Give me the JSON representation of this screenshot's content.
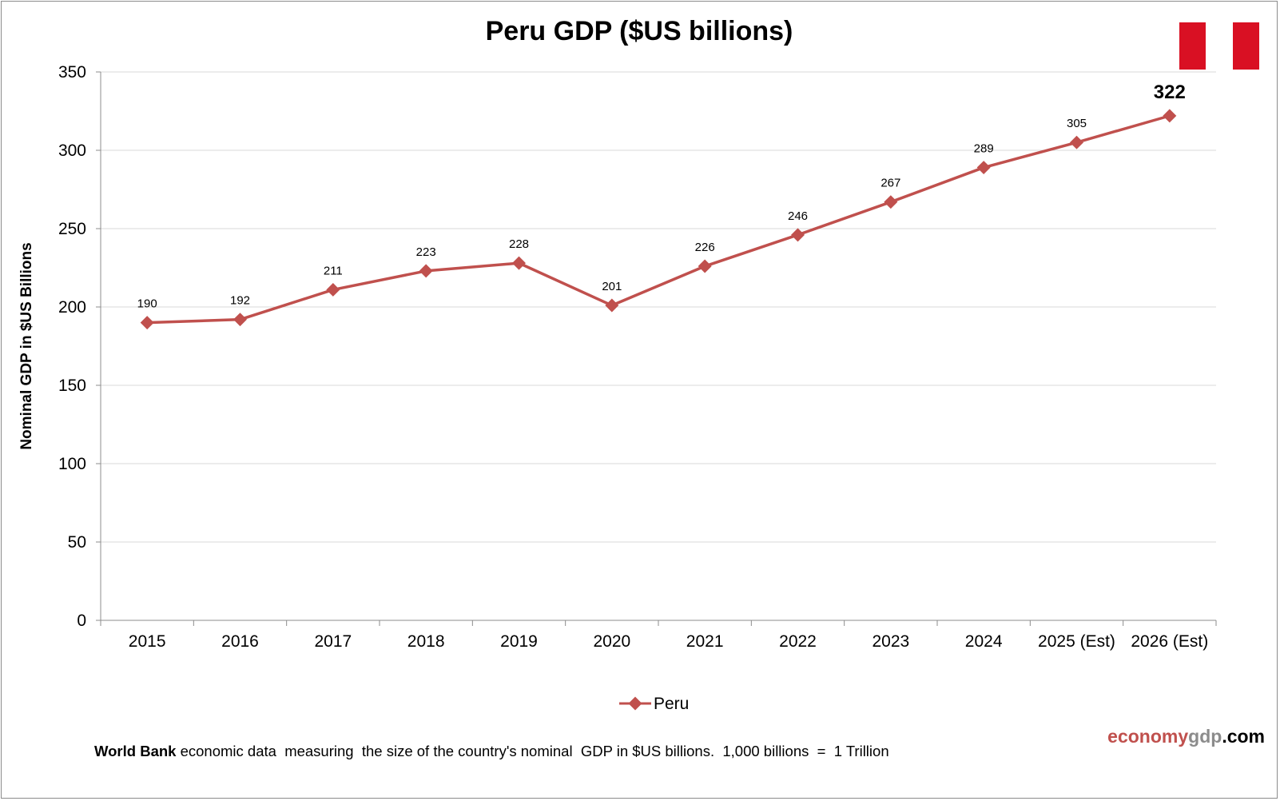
{
  "colors": {
    "series": "#c0504d",
    "flag_red": "#d91023",
    "grid": "#d9d9d9",
    "axis": "#8c8c8c",
    "brand_economy": "#c0504d",
    "brand_gdp": "#8c8c8c",
    "brand_com": "#000000"
  },
  "chart_data": {
    "type": "line",
    "title": "Peru GDP ($US billions)",
    "ylabel": "Nominal GDP in $US Billions",
    "xlabel": "",
    "ylim": [
      0,
      350
    ],
    "yticks": [
      "0",
      "50",
      "100",
      "150",
      "200",
      "250",
      "300",
      "350"
    ],
    "categories": [
      "2015",
      "2016",
      "2017",
      "2018",
      "2019",
      "2020",
      "2021",
      "2022",
      "2023",
      "2024",
      "2025 (Est)",
      "2026 (Est)"
    ],
    "series": [
      {
        "name": "Peru",
        "values": [
          190,
          192,
          211,
          223,
          228,
          201,
          226,
          246,
          267,
          289,
          305,
          322
        ],
        "labels": [
          "190",
          "192",
          "211",
          "223",
          "228",
          "201",
          "226",
          "246",
          "267",
          "289",
          "305",
          "322"
        ]
      }
    ],
    "grid": true,
    "legend": "bottom-center"
  },
  "footnote": {
    "bold": "World Bank",
    "text": " economic data  measuring  the size of the country's nominal  GDP in $US billions.  1,000 billions  =  1 Trillion"
  },
  "brand": {
    "part1": "economy",
    "part2": "gdp",
    "part3": ".com"
  },
  "flag": {
    "icon": "peru-flag-icon"
  }
}
